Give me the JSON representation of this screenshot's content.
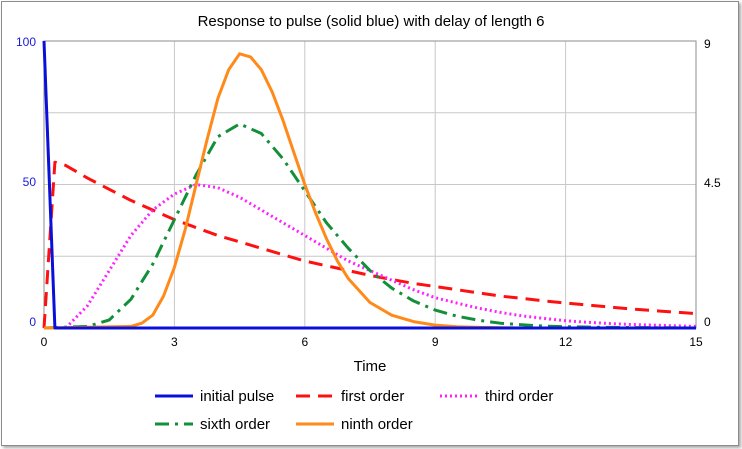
{
  "chart_data": {
    "type": "line",
    "title": "Response to pulse (solid blue) with delay of length 6",
    "xlabel": "Time",
    "x_ticks": [
      "0",
      "3",
      "6",
      "9",
      "12",
      "15"
    ],
    "left_ticks": [
      "100",
      "50",
      "0"
    ],
    "right_ticks": [
      "9",
      "4.5",
      "0"
    ],
    "xlim": [
      0,
      15
    ],
    "ylim_left": [
      0,
      100
    ],
    "ylim_right": [
      0,
      9
    ],
    "grid": true,
    "legend_position": "bottom",
    "series": [
      {
        "name": "initial pulse",
        "axis": "left",
        "color": "#0a10d8",
        "style": "solid",
        "x": [
          0,
          0.25,
          0.25,
          15
        ],
        "y": [
          100,
          0,
          0,
          0
        ]
      },
      {
        "name": "first order",
        "axis": "right",
        "color": "#ff1010",
        "style": "dashed",
        "x": [
          0,
          0.25,
          0.5,
          1,
          1.5,
          2,
          2.5,
          3,
          3.5,
          4,
          4.5,
          5,
          5.5,
          6,
          6.5,
          7,
          7.5,
          8,
          8.5,
          9,
          9.5,
          10,
          10.5,
          11,
          11.5,
          12,
          12.5,
          13,
          13.5,
          14,
          14.5,
          15
        ],
        "y": [
          0,
          5.2,
          5.1,
          4.7,
          4.35,
          4.0,
          3.7,
          3.4,
          3.15,
          2.9,
          2.7,
          2.5,
          2.3,
          2.1,
          1.95,
          1.8,
          1.65,
          1.52,
          1.4,
          1.3,
          1.2,
          1.1,
          1.0,
          0.93,
          0.85,
          0.78,
          0.72,
          0.66,
          0.6,
          0.55,
          0.5,
          0.45
        ]
      },
      {
        "name": "third order",
        "axis": "right",
        "color": "#ff22ff",
        "style": "dotted",
        "x": [
          0.5,
          1,
          1.5,
          2,
          2.5,
          3,
          3.5,
          4,
          4.5,
          5,
          5.5,
          6,
          6.5,
          7,
          7.5,
          8,
          8.5,
          9,
          9.5,
          10,
          10.5,
          11,
          11.5,
          12,
          12.5,
          13,
          13.5,
          14,
          14.5,
          15
        ],
        "y": [
          0,
          0.7,
          1.8,
          2.9,
          3.7,
          4.2,
          4.5,
          4.4,
          4.1,
          3.7,
          3.3,
          2.9,
          2.5,
          2.1,
          1.8,
          1.5,
          1.2,
          0.95,
          0.78,
          0.62,
          0.49,
          0.38,
          0.3,
          0.23,
          0.18,
          0.14,
          0.11,
          0.09,
          0.07,
          0.05
        ]
      },
      {
        "name": "sixth order",
        "axis": "right",
        "color": "#138f3a",
        "style": "dash-dot",
        "x": [
          0,
          1,
          1.5,
          2,
          2.5,
          3,
          3.5,
          4,
          4.5,
          5,
          5.5,
          6,
          6.5,
          7,
          7.5,
          8,
          8.5,
          9,
          9.5,
          10,
          10.5,
          11,
          11.5,
          12,
          13,
          14,
          15
        ],
        "y": [
          0,
          0.05,
          0.25,
          0.9,
          2.0,
          3.4,
          4.8,
          6.0,
          6.4,
          6.1,
          5.3,
          4.3,
          3.3,
          2.5,
          1.8,
          1.25,
          0.85,
          0.56,
          0.37,
          0.24,
          0.15,
          0.1,
          0.06,
          0.04,
          0.02,
          0.01,
          0.0
        ]
      },
      {
        "name": "ninth order",
        "axis": "right",
        "color": "#ff8a1a",
        "style": "solid",
        "x": [
          0,
          2,
          2.25,
          2.5,
          2.75,
          3,
          3.25,
          3.5,
          3.75,
          4,
          4.25,
          4.5,
          4.75,
          5,
          5.25,
          5.5,
          5.75,
          6,
          6.25,
          6.5,
          6.75,
          7,
          7.5,
          8,
          8.5,
          9,
          9.5,
          10,
          11,
          12,
          15
        ],
        "y": [
          0,
          0.05,
          0.15,
          0.4,
          1.0,
          1.9,
          3.1,
          4.5,
          5.9,
          7.2,
          8.1,
          8.6,
          8.5,
          8.1,
          7.4,
          6.5,
          5.5,
          4.5,
          3.6,
          2.8,
          2.1,
          1.55,
          0.8,
          0.4,
          0.2,
          0.09,
          0.04,
          0.02,
          0.0,
          0.0,
          0.0
        ]
      }
    ]
  }
}
